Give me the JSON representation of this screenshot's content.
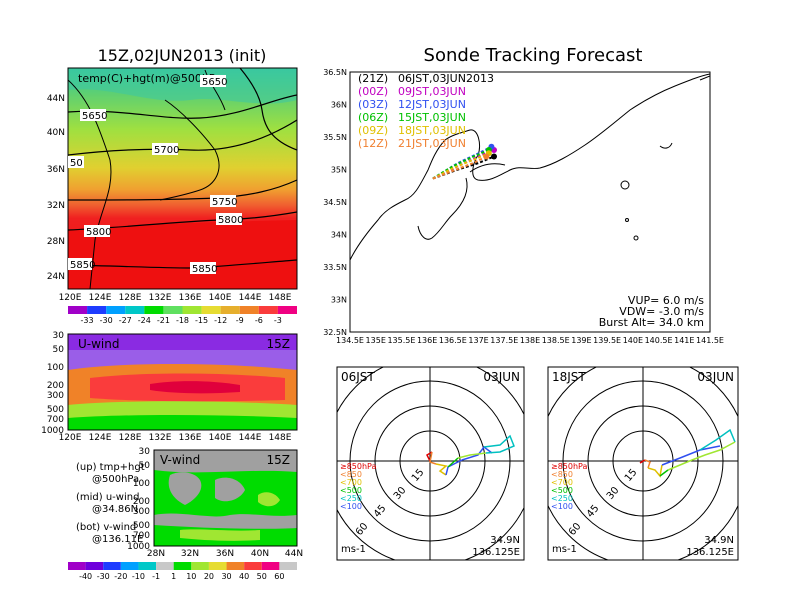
{
  "left_title": "15Z,02JUN2013 (init)",
  "right_title": "Sonde Tracking Forecast",
  "map500": {
    "label": "temp(C)+hgt(m)@500hPa",
    "lat_ticks": [
      "44N",
      "40N",
      "36N",
      "32N",
      "28N",
      "24N"
    ],
    "lon_ticks": [
      "120E",
      "124E",
      "128E",
      "132E",
      "136E",
      "140E",
      "144E",
      "148E"
    ],
    "contour_labels": [
      "5650",
      "5650",
      "5700",
      "50",
      "5750",
      "5800",
      "5800",
      "5850",
      "5850"
    ],
    "colorbar_labels": [
      "-33",
      "-30",
      "-27",
      "-24",
      "-21",
      "-18",
      "-15",
      "-12",
      "-9",
      "-6",
      "-3"
    ],
    "colorbar_colors": [
      "#1e3cff",
      "#00a0ff",
      "#00c8c8",
      "#00dc00",
      "#60e060",
      "#a0e632",
      "#e6dc32",
      "#e6af2d",
      "#f08228",
      "#fa3c3c",
      "#f00082"
    ]
  },
  "uwind": {
    "label": "U-wind",
    "time": "15Z",
    "y_ticks": [
      "30",
      "50",
      "100",
      "200",
      "300",
      "500",
      "700",
      "1000"
    ],
    "x_ticks": [
      "120E",
      "124E",
      "128E",
      "132E",
      "136E",
      "140E",
      "144E",
      "148E"
    ]
  },
  "vwind": {
    "label": "V-wind",
    "time": "15Z",
    "y_ticks": [
      "30",
      "50",
      "100",
      "200",
      "300",
      "500",
      "700",
      "1000"
    ],
    "x_ticks": [
      "28N",
      "32N",
      "36N",
      "40N",
      "44N"
    ]
  },
  "notes": [
    {
      "a": "(up) tmp+hgt",
      "b": "@500hPa"
    },
    {
      "a": "(mid) u-wind",
      "b": "@34.86N"
    },
    {
      "a": "(bot) v-wind",
      "b": "@136.11E"
    }
  ],
  "wind_colorbar": {
    "labels": [
      "-40",
      "-30",
      "-20",
      "-10",
      "-1",
      "1",
      "10",
      "20",
      "30",
      "40",
      "50",
      "60"
    ],
    "colors": [
      "#a000c8",
      "#6e00dc",
      "#1e3cff",
      "#00a0ff",
      "#00c8c8",
      "#c8c8c8",
      "#00dc00",
      "#a0e632",
      "#e6dc32",
      "#f08228",
      "#fa3c3c",
      "#f00082",
      "#c8c8c8"
    ]
  },
  "track": {
    "lat_ticks": [
      "36.5N",
      "36N",
      "35.5N",
      "35N",
      "34.5N",
      "34N",
      "33.5N",
      "33N",
      "32.5N"
    ],
    "lon_ticks": [
      "134.5E",
      "135E",
      "135.5E",
      "136E",
      "136.5E",
      "137E",
      "137.5E",
      "138E",
      "138.5E",
      "139E",
      "139.5E",
      "140E",
      "140.5E",
      "141E",
      "141.5E"
    ],
    "legend": [
      {
        "a": "(21Z)",
        "b": "06JST,03JUN2013",
        "color": "#000000"
      },
      {
        "a": "(00Z)",
        "b": "09JST,03JUN",
        "color": "#c000c0"
      },
      {
        "a": "(03Z)",
        "b": "12JST,03JUN",
        "color": "#3050f0"
      },
      {
        "a": "(06Z)",
        "b": "15JST,03JUN",
        "color": "#00c000"
      },
      {
        "a": "(09Z)",
        "b": "18JST,03JUN",
        "color": "#e0c000"
      },
      {
        "a": "(12Z)",
        "b": "21JST,03JUN",
        "color": "#f08030"
      }
    ],
    "params": [
      "VUP=  6.0 m/s",
      "VDW= -3.0 m/s",
      "Burst Alt= 34.0 km"
    ]
  },
  "hodo1": {
    "time": "06JST",
    "date": "03JUN",
    "lat": "34.9N",
    "lon": "136.125E",
    "unit": "ms-1"
  },
  "hodo2": {
    "time": "18JST",
    "date": "03JUN",
    "lat": "34.9N",
    "lon": "136.125E",
    "unit": "ms-1"
  },
  "hodo_ring_labels": [
    "15",
    "30",
    "45",
    "60"
  ],
  "hodo_levels": [
    {
      "t": "≥850hPa",
      "color": "#e00000"
    },
    {
      "t": "<850",
      "color": "#f08030"
    },
    {
      "t": "<700",
      "color": "#e0c000"
    },
    {
      "t": "<500",
      "color": "#00c000"
    },
    {
      "t": "<250",
      "color": "#00c0c0"
    },
    {
      "t": "<100",
      "color": "#3050f0"
    }
  ],
  "chart_data": [
    {
      "type": "heatmap",
      "title": "temp(C)+hgt(m)@500hPa",
      "xlim": [
        120,
        150
      ],
      "ylim": [
        22,
        47
      ],
      "contours": [
        5650,
        5700,
        5750,
        5800,
        5850
      ]
    },
    {
      "type": "heatmap",
      "title": "U-wind",
      "xlim": [
        120,
        150
      ],
      "ylabel_values": [
        1000,
        30
      ]
    },
    {
      "type": "heatmap",
      "title": "V-wind",
      "xlim": [
        28,
        44
      ],
      "ylabel_values": [
        1000,
        30
      ]
    },
    {
      "type": "line",
      "title": "Sonde Tracking Forecast",
      "xlim": [
        134.5,
        141.5
      ],
      "ylim": [
        32.5,
        36.5
      ],
      "series": [
        {
          "name": "(21Z) 06JST,03JUN2013",
          "x": [
            136.11,
            136.6,
            137.0,
            137.3
          ],
          "y": [
            34.86,
            35.0,
            35.1,
            35.2
          ]
        },
        {
          "name": "(00Z) 09JST,03JUN",
          "x": [
            136.11,
            136.6,
            137.0,
            137.3
          ],
          "y": [
            34.86,
            35.05,
            35.2,
            35.3
          ]
        },
        {
          "name": "(03Z) 12JST,03JUN",
          "x": [
            136.11,
            136.6,
            137.0,
            137.25
          ],
          "y": [
            34.86,
            35.1,
            35.25,
            35.35
          ]
        },
        {
          "name": "(06Z) 15JST,03JUN",
          "x": [
            136.11,
            136.5,
            136.9,
            137.2
          ],
          "y": [
            34.86,
            35.05,
            35.2,
            35.3
          ]
        },
        {
          "name": "(09Z) 18JST,03JUN",
          "x": [
            136.11,
            136.5,
            136.9,
            137.2
          ],
          "y": [
            34.86,
            35.02,
            35.15,
            35.25
          ]
        },
        {
          "name": "(12Z) 21JST,03JUN",
          "x": [
            136.11,
            136.5,
            136.9,
            137.15
          ],
          "y": [
            34.86,
            34.98,
            35.1,
            35.2
          ]
        }
      ]
    }
  ]
}
